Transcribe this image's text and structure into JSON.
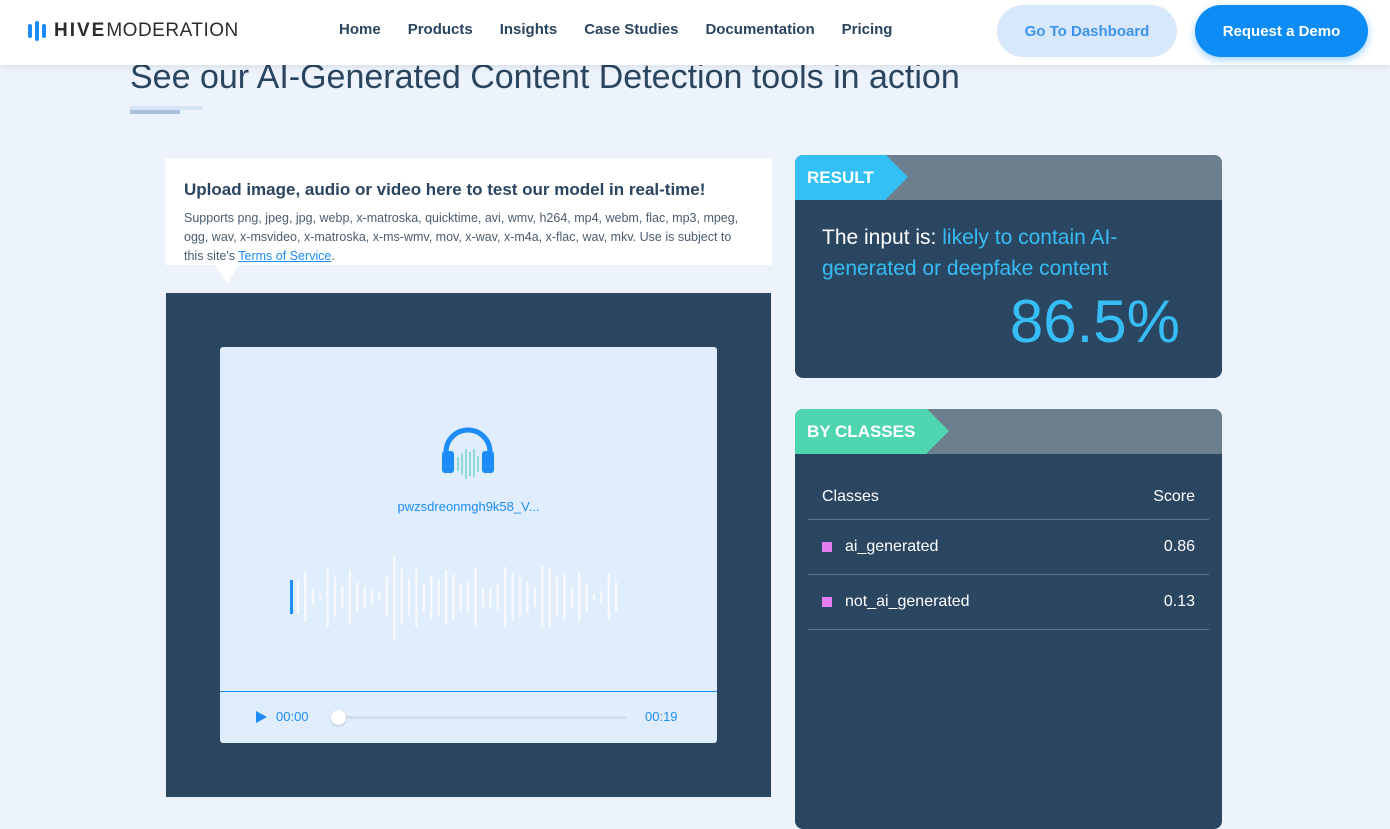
{
  "nav": {
    "logo": {
      "bold": "HIVE",
      "light": "MODERATION"
    },
    "items": [
      "Home",
      "Products",
      "Insights",
      "Case Studies",
      "Documentation",
      "Pricing"
    ],
    "dashboard_label": "Go To Dashboard",
    "demo_label": "Request a Demo"
  },
  "page_title": "See our AI-Generated Content Detection tools in action",
  "upload": {
    "heading": "Upload image, audio or video here to test our model in real-time!",
    "supports": "Supports png, jpeg, jpg, webp, x-matroska, quicktime, avi, wmv, h264, mp4, webm, flac, mp3, mpeg, ogg, wav, x-msvideo, x-matroska, x-ms-wmv, mov, x-wav, x-m4a, x-flac, wav, mkv. Use is subject to this site's ",
    "tos_link": "Terms of Service",
    "tos_suffix": "."
  },
  "player": {
    "icon": "headphones-icon",
    "filename": "pwzsdreonmgh9k58_V...",
    "current_time": "00:00",
    "duration": "00:19",
    "progress": 0
  },
  "result": {
    "tag": "RESULT",
    "prefix": "The input is: ",
    "verdict": "likely to contain AI-generated or deepfake content",
    "percent": "86.5%"
  },
  "classes": {
    "tag": "BY CLASSES",
    "header": {
      "class": "Classes",
      "score": "Score"
    },
    "rows": [
      {
        "name": "ai_generated",
        "score": "0.86"
      },
      {
        "name": "not_ai_generated",
        "score": "0.13"
      }
    ]
  },
  "colors": {
    "accent": "#0d8cf6",
    "result_tag": "#33c0f5",
    "classes_tag": "#4fd6b0",
    "panel": "#2b4661",
    "class_swatch": "#e47ef0"
  }
}
